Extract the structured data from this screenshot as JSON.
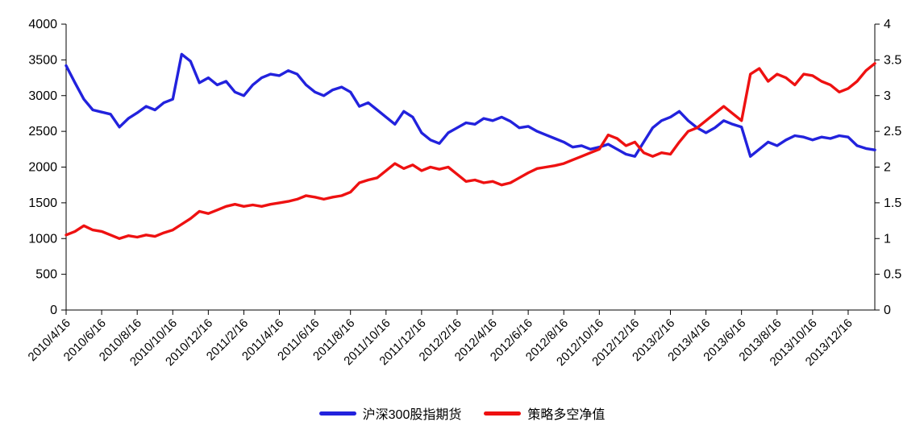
{
  "chart_data": {
    "type": "line",
    "title": "",
    "grid": false,
    "legend_position": "bottom",
    "x_tick_step": 4,
    "x_tick_labels": [
      "2010/4/16",
      "2010/6/16",
      "2010/8/16",
      "2010/10/16",
      "2010/12/16",
      "2011/2/16",
      "2011/4/16",
      "2011/6/16",
      "2011/8/16",
      "2011/10/16",
      "2011/12/16",
      "2012/2/16",
      "2012/4/16",
      "2012/6/16",
      "2012/8/16",
      "2012/10/16",
      "2012/12/16",
      "2013/2/16",
      "2013/4/16",
      "2013/6/16",
      "2013/8/16",
      "2013/10/16",
      "2013/12/16"
    ],
    "left_axis": {
      "min": 0,
      "max": 4000,
      "tick_labels": [
        "0",
        "500",
        "1000",
        "1500",
        "2000",
        "2500",
        "3000",
        "3500",
        "4000"
      ]
    },
    "right_axis": {
      "min": 0,
      "max": 4,
      "tick_labels": [
        "0",
        "0.5",
        "1",
        "1.5",
        "2",
        "2.5",
        "3",
        "3.5",
        "4"
      ]
    },
    "series": [
      {
        "name": "沪深300股指期货",
        "axis": "left",
        "color": "#2222dd",
        "values": [
          3420,
          3180,
          2950,
          2800,
          2770,
          2740,
          2560,
          2680,
          2760,
          2850,
          2800,
          2900,
          2950,
          3580,
          3480,
          3180,
          3250,
          3150,
          3200,
          3050,
          3000,
          3150,
          3250,
          3300,
          3280,
          3350,
          3300,
          3150,
          3050,
          3000,
          3080,
          3120,
          3050,
          2850,
          2900,
          2800,
          2700,
          2600,
          2780,
          2700,
          2480,
          2380,
          2330,
          2480,
          2550,
          2620,
          2600,
          2680,
          2650,
          2700,
          2640,
          2550,
          2570,
          2500,
          2450,
          2400,
          2350,
          2280,
          2300,
          2250,
          2280,
          2320,
          2250,
          2180,
          2150,
          2350,
          2550,
          2650,
          2700,
          2780,
          2650,
          2550,
          2480,
          2550,
          2650,
          2600,
          2560,
          2150,
          2250,
          2350,
          2300,
          2380,
          2440,
          2420,
          2380,
          2420,
          2400,
          2440,
          2420,
          2300,
          2260,
          2240
        ]
      },
      {
        "name": "策略多空净值",
        "axis": "right",
        "color": "#ee1111",
        "values": [
          1.05,
          1.1,
          1.18,
          1.12,
          1.1,
          1.05,
          1.0,
          1.04,
          1.02,
          1.05,
          1.03,
          1.08,
          1.12,
          1.2,
          1.28,
          1.38,
          1.35,
          1.4,
          1.45,
          1.48,
          1.45,
          1.47,
          1.45,
          1.48,
          1.5,
          1.52,
          1.55,
          1.6,
          1.58,
          1.55,
          1.58,
          1.6,
          1.65,
          1.78,
          1.82,
          1.85,
          1.95,
          2.05,
          1.98,
          2.03,
          1.95,
          2.0,
          1.97,
          2.0,
          1.9,
          1.8,
          1.82,
          1.78,
          1.8,
          1.75,
          1.78,
          1.85,
          1.92,
          1.98,
          2.0,
          2.02,
          2.05,
          2.1,
          2.15,
          2.2,
          2.25,
          2.45,
          2.4,
          2.3,
          2.35,
          2.2,
          2.15,
          2.2,
          2.18,
          2.35,
          2.5,
          2.55,
          2.65,
          2.75,
          2.85,
          2.75,
          2.65,
          3.3,
          3.38,
          3.2,
          3.3,
          3.25,
          3.15,
          3.3,
          3.28,
          3.2,
          3.15,
          3.05,
          3.1,
          3.2,
          3.35,
          3.45
        ]
      }
    ]
  }
}
